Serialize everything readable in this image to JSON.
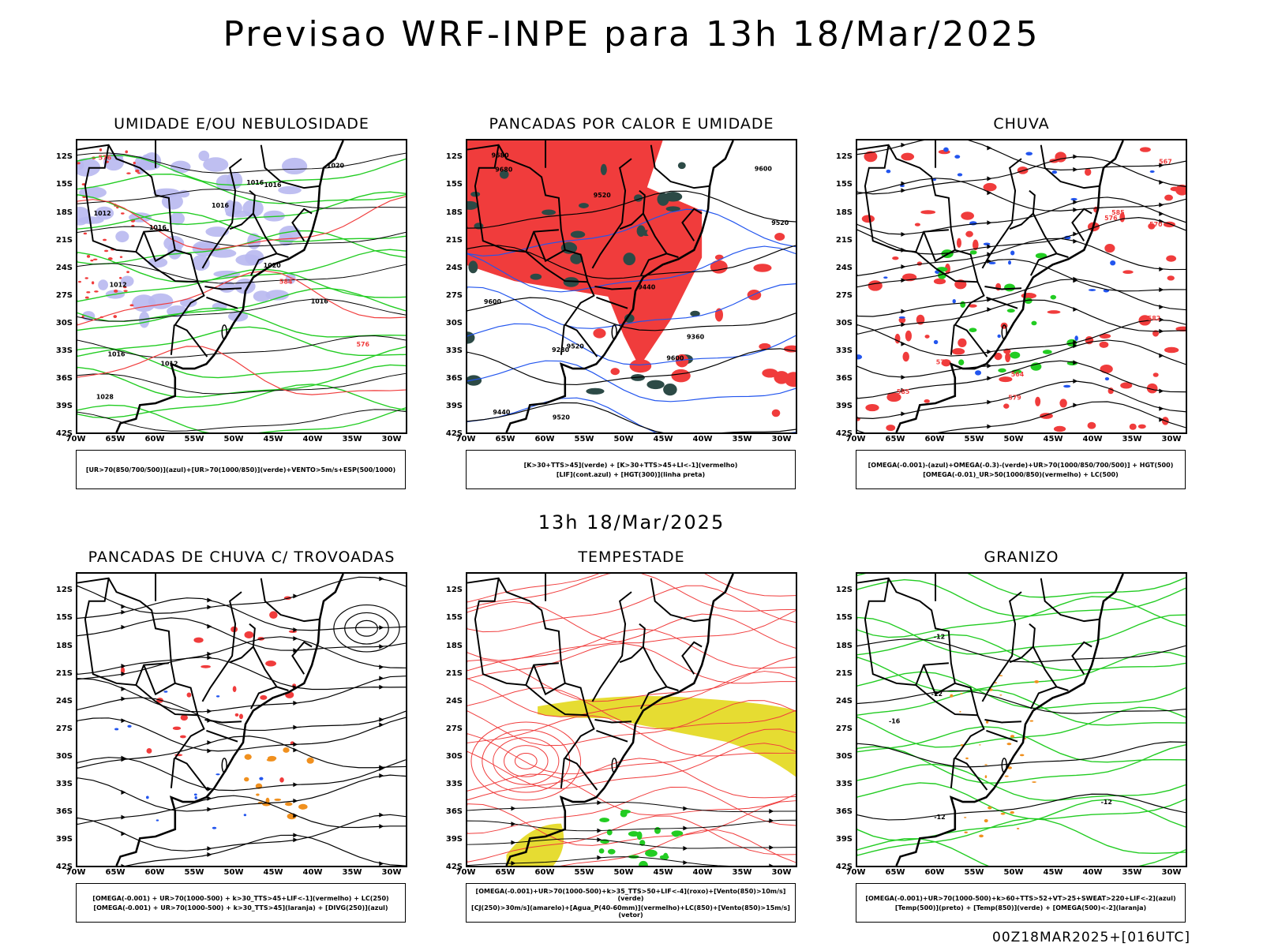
{
  "title": "Previsao WRF-INPE  para 13h 18/Mar/2025",
  "subtitle": "13h 18/Mar/2025",
  "footer": "00Z18MAR2025+[016UTC]",
  "colors": {
    "red": "#f03c3c",
    "green": "#22cc22",
    "blue": "#2255ee",
    "lavender": "#b8b8f0",
    "darkgreen": "#2c4a46",
    "yellow": "#e6dc32",
    "orange": "#f0901e",
    "black": "#000000"
  },
  "axes": {
    "lat_labels": [
      "12S",
      "15S",
      "18S",
      "21S",
      "24S",
      "27S",
      "30S",
      "33S",
      "36S",
      "39S",
      "42S"
    ],
    "lon_labels": [
      "70W",
      "65W",
      "60W",
      "55W",
      "50W",
      "45W",
      "40W",
      "35W",
      "30W"
    ]
  },
  "panels": [
    {
      "title": "UMIDADE E/OU NEBULOSIDADE",
      "legend": [
        "[UR>70(850/700/500)](azul)+[UR>70(1000/850)](verde)+VENTO>5m/s+ESP(500/1000)"
      ],
      "contour_labels": [
        "1012",
        "1012",
        "1012",
        "1016",
        "1016",
        "1016",
        "1020",
        "1020",
        "1016",
        "1016",
        "1016",
        "1028",
        "576",
        "576",
        "584"
      ]
    },
    {
      "title": "PANCADAS POR CALOR E UMIDADE",
      "legend": [
        "[K>30+TTS>45](verde) + [K>30+TTS>45+LI<-1](vermelho)",
        "[LIF](cont.azul) + [HGT(300)](linha preta)"
      ],
      "contour_labels": [
        "9680",
        "9680",
        "9600",
        "9600",
        "9520",
        "9600",
        "9520",
        "9520",
        "9440",
        "9360",
        "9280",
        "9440",
        "9520"
      ]
    },
    {
      "title": "CHUVA",
      "legend": [
        "[OMEGA(-0.001)-(azul)+OMEGA(-0.3)-(verde)+UR>70(1000/850/700/500)] + HGT(500)",
        "[OMEGA(-0.01)_UR>50(1000/850)(vermelho) + LC(500)"
      ],
      "contour_labels": [
        "585",
        "585",
        "582",
        "579",
        "576",
        "573",
        "570",
        "567",
        "564"
      ]
    },
    {
      "title": "PANCADAS DE CHUVA C/ TROVOADAS",
      "legend": [
        "[OMEGA(-0.001) + UR>70(1000-500) + k>30_TTS>45+LIF<-1](vermelho) + LC(250)",
        "[OMEGA(-0.001) + UR>70(1000-500) + k>30_TTS>45](laranja) + [DIVG(250)](azul)"
      ],
      "contour_labels": []
    },
    {
      "title": "TEMPESTADE",
      "legend": [
        "[OMEGA(-0.001)+UR>70(1000-500)+k>35_TTS>50+LIF<-4](roxo)+[Vento(850)>10m/s](verde)",
        "[CJ(250)>30m/s](amarelo)+[Agua_P(40-60mm)](vermelho)+LC(850)+[Vento(850)>15m/s](vetor)"
      ],
      "contour_labels": []
    },
    {
      "title": "GRANIZO",
      "legend": [
        "[OMEGA(-0.001)+UR>70(1000-500)+k>60+TTS>52+VT>25+SWEAT>220+LIF<-2](azul)",
        "[Temp(500)](preto) + [Temp(850)](verde) + [OMEGA(500)<-2](laranja)"
      ],
      "contour_labels": [
        "-12",
        "-12",
        "-12",
        "-16",
        "-12"
      ]
    }
  ]
}
